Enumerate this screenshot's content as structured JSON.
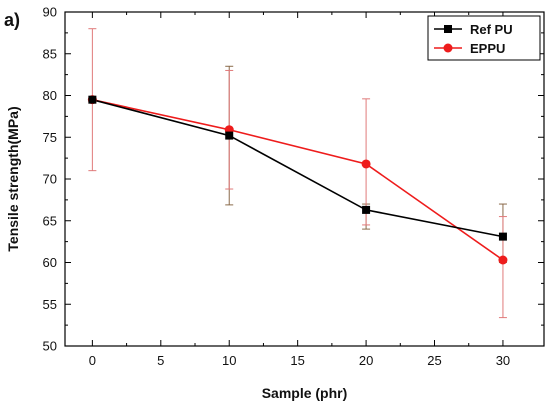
{
  "chart_data": {
    "type": "line",
    "panel_label": "a)",
    "xlabel": "Sample (phr)",
    "ylabel": "Tensile strength(MPa)",
    "xlim": [
      -2,
      33
    ],
    "ylim": [
      50,
      90
    ],
    "xticks": [
      0,
      5,
      10,
      15,
      20,
      25,
      30
    ],
    "yticks": [
      50,
      55,
      60,
      65,
      70,
      75,
      80,
      85,
      90
    ],
    "grid": false,
    "legend_position": "top-right",
    "x": [
      0,
      10,
      20,
      30
    ],
    "series": [
      {
        "name": "Ref PU",
        "color": "#000000",
        "marker": "square",
        "values": [
          79.5,
          75.2,
          66.3,
          63.1
        ],
        "error_low": [
          79.5,
          66.9,
          64.0,
          60.0
        ],
        "error_high": [
          79.5,
          83.5,
          67.0,
          67.0
        ]
      },
      {
        "name": "EPPU",
        "color": "#ee1c1c",
        "marker": "circle",
        "values": [
          79.5,
          75.9,
          71.8,
          60.3
        ],
        "error_low": [
          71.0,
          68.8,
          64.5,
          53.4
        ],
        "error_high": [
          88.0,
          83.0,
          79.6,
          65.5
        ]
      }
    ]
  }
}
